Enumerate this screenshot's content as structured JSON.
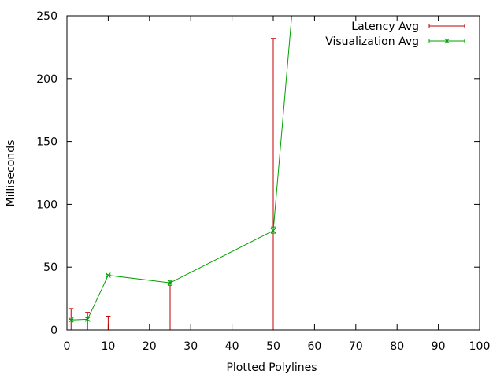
{
  "chart_data": {
    "type": "line",
    "xlabel": "Plotted Polylines",
    "ylabel": "Milliseconds",
    "xlim": [
      0,
      100
    ],
    "ylim": [
      0,
      250
    ],
    "x_ticks": [
      0,
      10,
      20,
      30,
      40,
      50,
      60,
      70,
      80,
      90,
      100
    ],
    "y_ticks": [
      0,
      50,
      100,
      150,
      200,
      250
    ],
    "grid": false,
    "legend_position": "top-right",
    "series": [
      {
        "name": "Latency Avg",
        "style": "errorbars",
        "color": "#c00000",
        "points": [
          {
            "x": 1,
            "low": 0,
            "high": 17
          },
          {
            "x": 5,
            "low": 0,
            "high": 14
          },
          {
            "x": 10,
            "low": 0,
            "high": 11
          },
          {
            "x": 25,
            "low": 0,
            "high": 37
          },
          {
            "x": 50,
            "low": 0,
            "high": 232
          }
        ]
      },
      {
        "name": "Visualization Avg",
        "style": "linespoints-errorbars",
        "color": "#00a000",
        "points": [
          {
            "x": 1,
            "y": 8,
            "low": 7,
            "high": 8.5
          },
          {
            "x": 5,
            "y": 8.5,
            "low": 7.5,
            "high": 10
          },
          {
            "x": 10,
            "y": 43.5,
            "low": 43,
            "high": 44
          },
          {
            "x": 25,
            "y": 37.5,
            "low": 35.5,
            "high": 39
          },
          {
            "x": 50,
            "y": 79,
            "low": 77,
            "high": 82
          },
          {
            "x": 55,
            "y": 270,
            "low": 270,
            "high": 270
          }
        ]
      }
    ]
  }
}
